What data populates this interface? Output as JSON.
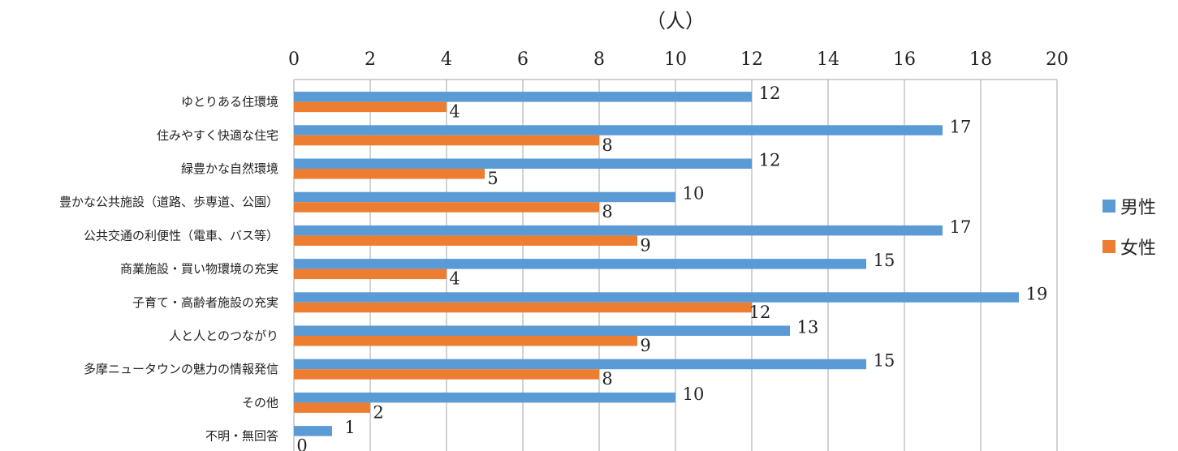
{
  "chart_data": {
    "type": "bar",
    "orientation": "horizontal",
    "axis_unit": "（人）",
    "xlim": [
      0,
      20
    ],
    "x_ticks": [
      0,
      2,
      4,
      6,
      8,
      10,
      12,
      14,
      16,
      18,
      20
    ],
    "grid": true,
    "legend_position": "right",
    "categories": [
      "ゆとりある住環境",
      "住みやすく快適な住宅",
      "緑豊かな自然環境",
      "豊かな公共施設（道路、歩専道、公園）",
      "公共交通の利便性（電車、バス等）",
      "商業施設・買い物環境の充実",
      "子育て・高齢者施設の充実",
      "人と人とのつながり",
      "多摩ニュータウンの魅力の情報発信",
      "その他",
      "不明・無回答"
    ],
    "series": [
      {
        "name": "男性",
        "color": "#5B9BD5",
        "values": [
          12,
          17,
          12,
          10,
          17,
          15,
          19,
          13,
          15,
          10,
          1
        ]
      },
      {
        "name": "女性",
        "color": "#ED7D31",
        "values": [
          4,
          8,
          5,
          8,
          9,
          4,
          12,
          9,
          8,
          2,
          0
        ]
      }
    ]
  }
}
